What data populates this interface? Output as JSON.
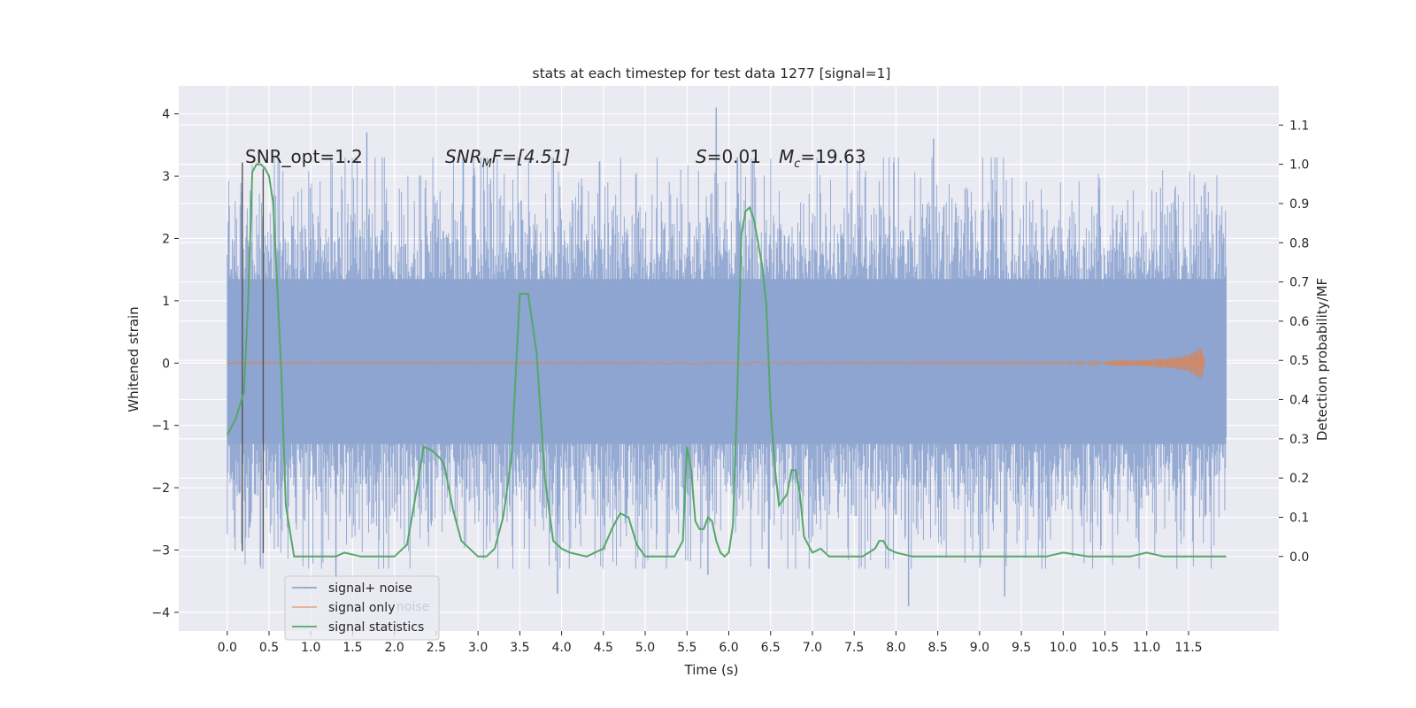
{
  "chart_data": {
    "type": "line",
    "title": "stats at each timestep for test data 1277 [signal=1]",
    "xlabel": "Time (s)",
    "ylabel": "Whitened strain",
    "y2label": "Detection probability/MF",
    "xlim": [
      -0.58,
      12.58
    ],
    "ylim": [
      -4.3,
      4.45
    ],
    "y2lim": [
      -0.19,
      1.2
    ],
    "x_ticks": [
      "0.0",
      "0.5",
      "1.0",
      "1.5",
      "2.0",
      "2.5",
      "3.0",
      "3.5",
      "4.0",
      "4.5",
      "5.0",
      "5.5",
      "6.0",
      "6.5",
      "7.0",
      "7.5",
      "8.0",
      "8.5",
      "9.0",
      "9.5",
      "10.0",
      "10.5",
      "11.0",
      "11.5"
    ],
    "y_ticks": [
      "4",
      "3",
      "2",
      "1",
      "0",
      "−1",
      "−2",
      "−3",
      "−4"
    ],
    "y2_ticks": [
      "1.1",
      "1.0",
      "0.9",
      "0.8",
      "0.7",
      "0.6",
      "0.5",
      "0.4",
      "0.3",
      "0.2",
      "0.1",
      "0.0"
    ],
    "grid": true,
    "legend_position": "lower-left",
    "annotations": {
      "snr_opt": "SNR_opt=1.2",
      "snr_mf_prefix": "SNR",
      "snr_mf_sub": "M",
      "snr_mf_suffix": "F=[4.51]",
      "s_symbol": "S",
      "s_value": "=0.01",
      "mc_symbol": "M",
      "mc_sub": "c",
      "mc_value": "=19.63"
    },
    "series": [
      {
        "name": "signal+ noise",
        "color": "#8da4cf",
        "axis": "left",
        "description": "whitened strain samples from 0.0 to 11.95 s",
        "band_core": [
          -1.3,
          1.35
        ],
        "band_typical": [
          -2.0,
          2.0
        ],
        "peaks": [
          {
            "x": 1.67,
            "y": 3.7
          },
          {
            "x": 5.85,
            "y": 4.1
          },
          {
            "x": 8.45,
            "y": 3.6
          },
          {
            "x": 1.3,
            "y": -3.45
          },
          {
            "x": 3.95,
            "y": -3.7
          },
          {
            "x": 8.15,
            "y": -3.9
          },
          {
            "x": 9.3,
            "y": -3.75
          },
          {
            "x": 5.75,
            "y": -3.4
          }
        ]
      },
      {
        "name": "signal only",
        "color": "#dd8452",
        "axis": "left",
        "x": [
          0,
          10.0,
          10.5,
          11.0,
          11.3,
          11.5,
          11.6,
          11.65,
          11.7
        ],
        "amplitude": [
          0.01,
          0.02,
          0.03,
          0.05,
          0.08,
          0.13,
          0.2,
          0.28,
          0.0
        ]
      },
      {
        "name": "signal statistics",
        "color": "#55a868",
        "axis": "right",
        "x": [
          0.0,
          0.1,
          0.2,
          0.25,
          0.3,
          0.35,
          0.4,
          0.45,
          0.5,
          0.55,
          0.6,
          0.65,
          0.7,
          0.8,
          1.0,
          1.2,
          1.3,
          1.4,
          1.6,
          2.0,
          2.15,
          2.25,
          2.35,
          2.45,
          2.55,
          2.6,
          2.7,
          2.8,
          3.0,
          3.1,
          3.2,
          3.3,
          3.4,
          3.5,
          3.6,
          3.7,
          3.8,
          3.9,
          4.0,
          4.1,
          4.3,
          4.5,
          4.6,
          4.7,
          4.8,
          4.9,
          5.0,
          5.2,
          5.35,
          5.45,
          5.5,
          5.55,
          5.6,
          5.65,
          5.7,
          5.75,
          5.8,
          5.85,
          5.9,
          5.95,
          6.0,
          6.05,
          6.1,
          6.15,
          6.2,
          6.25,
          6.3,
          6.35,
          6.4,
          6.45,
          6.5,
          6.55,
          6.6,
          6.7,
          6.75,
          6.8,
          6.85,
          6.9,
          7.0,
          7.1,
          7.2,
          7.4,
          7.6,
          7.75,
          7.8,
          7.85,
          7.9,
          8.0,
          8.2,
          8.5,
          9.0,
          9.5,
          9.8,
          10.0,
          10.3,
          10.5,
          10.8,
          11.0,
          11.2,
          11.5,
          11.8,
          11.95
        ],
        "values": [
          0.31,
          0.35,
          0.42,
          0.65,
          0.98,
          1.0,
          1.0,
          0.99,
          0.97,
          0.9,
          0.68,
          0.45,
          0.13,
          0.0,
          0.0,
          0.0,
          0.0,
          0.01,
          0.0,
          0.0,
          0.03,
          0.15,
          0.28,
          0.27,
          0.25,
          0.23,
          0.12,
          0.04,
          0.0,
          0.0,
          0.02,
          0.1,
          0.25,
          0.67,
          0.67,
          0.52,
          0.2,
          0.04,
          0.02,
          0.01,
          0.0,
          0.02,
          0.07,
          0.11,
          0.1,
          0.03,
          0.0,
          0.0,
          0.0,
          0.04,
          0.28,
          0.22,
          0.09,
          0.07,
          0.07,
          0.1,
          0.09,
          0.04,
          0.01,
          0.0,
          0.01,
          0.08,
          0.4,
          0.82,
          0.88,
          0.89,
          0.86,
          0.8,
          0.74,
          0.64,
          0.38,
          0.23,
          0.13,
          0.16,
          0.22,
          0.22,
          0.16,
          0.05,
          0.01,
          0.02,
          0.0,
          0.0,
          0.0,
          0.02,
          0.04,
          0.04,
          0.02,
          0.01,
          0.0,
          0.0,
          0.0,
          0.0,
          0.0,
          0.01,
          0.0,
          0.0,
          0.0,
          0.01,
          0.0,
          0.0,
          0.0,
          0.0
        ]
      }
    ],
    "vlines": [
      {
        "x": 0.18,
        "y0": -3.02,
        "y1": 3.22,
        "color": "#555555"
      },
      {
        "x": 0.43,
        "y0": -3.05,
        "y1": 3.12,
        "color": "#555555"
      }
    ],
    "legend_ghost_text": "noise"
  }
}
